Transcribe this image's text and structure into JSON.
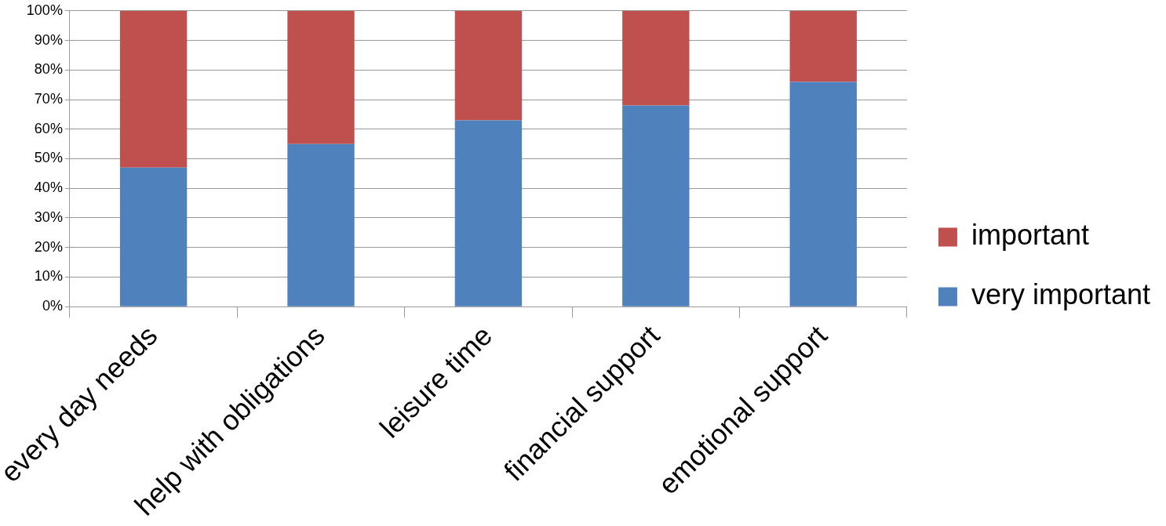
{
  "chart_data": {
    "type": "bar",
    "stacked": true,
    "categories": [
      "every day needs",
      "help with obligations",
      "leisure time",
      "financial support",
      "emotional support"
    ],
    "series": [
      {
        "name": "very important",
        "color": "#4f81bd",
        "values": [
          47,
          55,
          63,
          68,
          76
        ]
      },
      {
        "name": "important",
        "color": "#c0504d",
        "values": [
          53,
          45,
          37,
          32,
          24
        ]
      }
    ],
    "ylim": [
      0,
      100
    ],
    "yticks": [
      {
        "value": 0,
        "label": "0%"
      },
      {
        "value": 10,
        "label": "10%"
      },
      {
        "value": 20,
        "label": "20%"
      },
      {
        "value": 30,
        "label": "30%"
      },
      {
        "value": 40,
        "label": "40%"
      },
      {
        "value": 50,
        "label": "50%"
      },
      {
        "value": 60,
        "label": "60%"
      },
      {
        "value": 70,
        "label": "70%"
      },
      {
        "value": 80,
        "label": "80%"
      },
      {
        "value": 90,
        "label": "90%"
      },
      {
        "value": 100,
        "label": "100%"
      }
    ],
    "grid": "y",
    "legend": "right"
  }
}
